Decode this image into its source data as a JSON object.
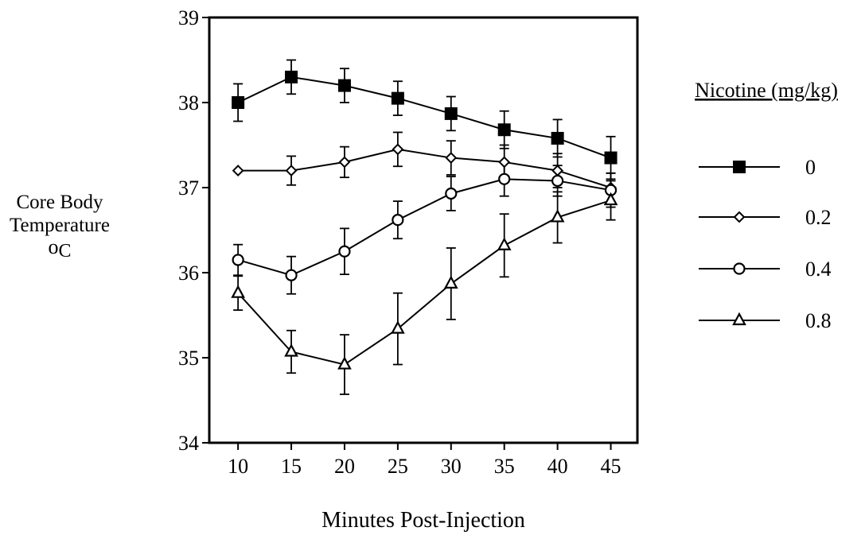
{
  "chart_data": {
    "type": "line",
    "xlabel": "Minutes Post-Injection",
    "ylabel_lines": [
      "Core Body",
      "Temperature"
    ],
    "ylabel_unit_symbol": "o",
    "ylabel_unit_letter": "C",
    "x": [
      10,
      15,
      20,
      25,
      30,
      35,
      40,
      45
    ],
    "xlim": [
      7.3,
      47.5
    ],
    "ylim": [
      34,
      39
    ],
    "yticks": [
      34,
      35,
      36,
      37,
      38,
      39
    ],
    "grid": false,
    "legend": {
      "title": "Nicotine (mg/kg)",
      "placement": "right"
    },
    "series": [
      {
        "name": "0",
        "marker": "filled-square",
        "values": [
          38.0,
          38.3,
          38.2,
          38.05,
          37.87,
          37.68,
          37.58,
          37.35
        ],
        "errors": [
          0.22,
          0.2,
          0.2,
          0.2,
          0.2,
          0.22,
          0.22,
          0.25
        ]
      },
      {
        "name": "0.2",
        "marker": "open-diamond",
        "values": [
          37.2,
          37.2,
          37.3,
          37.45,
          37.35,
          37.3,
          37.2,
          37.0
        ],
        "errors": [
          0.0,
          0.17,
          0.18,
          0.2,
          0.2,
          0.2,
          0.2,
          0.17
        ]
      },
      {
        "name": "0.4",
        "marker": "open-circle",
        "values": [
          36.15,
          35.97,
          36.25,
          36.62,
          36.93,
          37.1,
          37.08,
          36.97
        ],
        "errors": [
          0.18,
          0.22,
          0.27,
          0.22,
          0.2,
          0.2,
          0.18,
          0.2
        ]
      },
      {
        "name": "0.8",
        "marker": "open-triangle",
        "values": [
          35.76,
          35.07,
          34.92,
          35.34,
          35.87,
          36.32,
          36.65,
          36.85
        ],
        "errors": [
          0.2,
          0.25,
          0.35,
          0.42,
          0.42,
          0.37,
          0.3,
          0.23
        ]
      }
    ]
  }
}
